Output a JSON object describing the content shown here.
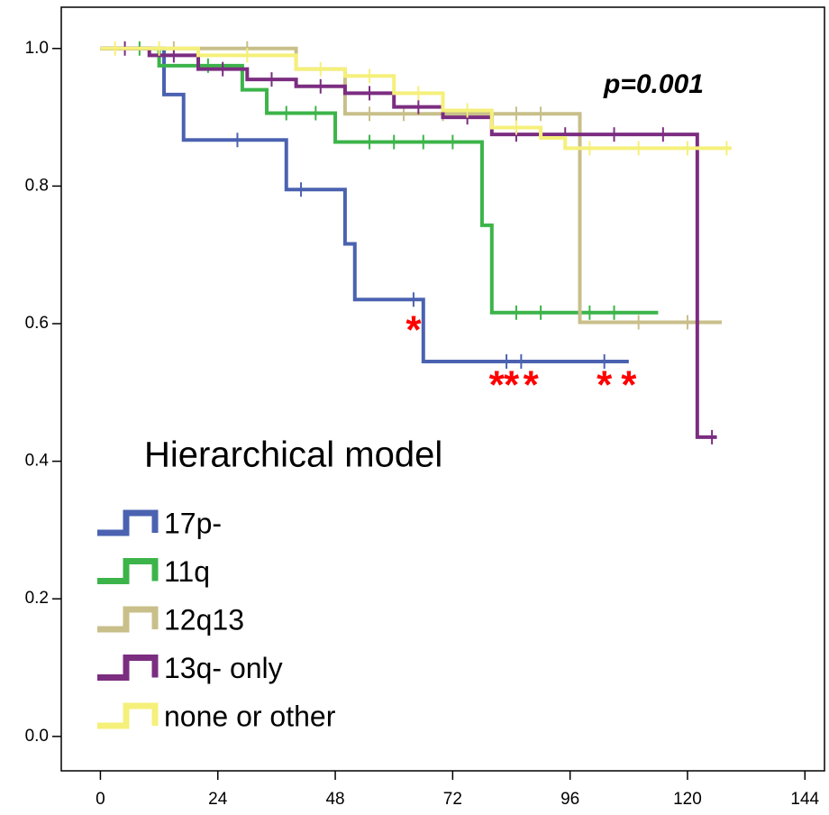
{
  "chart_data": {
    "type": "line",
    "step_curve": true,
    "legend_title": "Hierarchical model",
    "annotation": "p=0.001",
    "markers": [
      {
        "text": "*",
        "x": 64,
        "y": 0.6
      },
      {
        "text": "*",
        "x": 81,
        "y": 0.52
      },
      {
        "text": "*",
        "x": 84,
        "y": 0.52
      },
      {
        "text": "*",
        "x": 88,
        "y": 0.52
      },
      {
        "text": "*",
        "x": 103,
        "y": 0.52
      },
      {
        "text": "*",
        "x": 108,
        "y": 0.52
      }
    ],
    "xlim": [
      -8,
      148
    ],
    "ylim": [
      -0.05,
      1.06
    ],
    "xticks": [
      0,
      24,
      48,
      72,
      96,
      120,
      144
    ],
    "yticks": [
      {
        "value": 0,
        "label": "0.0"
      },
      0.2,
      0.4,
      0.6,
      0.8,
      {
        "value": 1,
        "label": "1.0"
      }
    ],
    "series": [
      {
        "name": "17p-",
        "color": "#4a62b0",
        "x": [
          0,
          13,
          13,
          17,
          17,
          38,
          38,
          50,
          50,
          52,
          52,
          66,
          66,
          108
        ],
        "values": [
          1.0,
          1.0,
          0.933,
          0.933,
          0.867,
          0.867,
          0.795,
          0.795,
          0.716,
          0.716,
          0.635,
          0.635,
          0.545,
          0.545
        ],
        "censored": {
          "x": [
            28,
            41,
            64,
            83,
            86,
            103
          ],
          "values": [
            0.867,
            0.795,
            0.635,
            0.545,
            0.545,
            0.545
          ]
        }
      },
      {
        "name": "11q",
        "color": "#3cb44a",
        "x": [
          0,
          12,
          12,
          29,
          29,
          34,
          34,
          48,
          48,
          78,
          78,
          80,
          80,
          114
        ],
        "values": [
          1.0,
          1.0,
          0.975,
          0.975,
          0.94,
          0.94,
          0.906,
          0.906,
          0.864,
          0.864,
          0.743,
          0.743,
          0.616,
          0.616
        ],
        "censored": {
          "x": [
            8,
            22,
            38,
            44,
            55,
            60,
            66,
            72,
            85,
            90,
            100,
            105
          ],
          "values": [
            1.0,
            0.975,
            0.906,
            0.906,
            0.864,
            0.864,
            0.864,
            0.864,
            0.616,
            0.616,
            0.616,
            0.616
          ]
        }
      },
      {
        "name": "12q13",
        "color": "#c8bf8a",
        "x": [
          0,
          40,
          40,
          50,
          50,
          98,
          98,
          127
        ],
        "values": [
          1.0,
          1.0,
          0.97,
          0.97,
          0.905,
          0.905,
          0.602,
          0.602
        ],
        "censored": {
          "x": [
            15,
            30,
            55,
            62,
            70,
            85,
            90,
            110,
            120
          ],
          "values": [
            1.0,
            1.0,
            0.905,
            0.905,
            0.905,
            0.905,
            0.905,
            0.602,
            0.602
          ]
        }
      },
      {
        "name": "13q- only",
        "color": "#7b2d80",
        "x": [
          0,
          10,
          10,
          20,
          20,
          30,
          30,
          40,
          40,
          50,
          50,
          60,
          60,
          70,
          70,
          80,
          80,
          122,
          122,
          126
        ],
        "values": [
          1.0,
          1.0,
          0.99,
          0.99,
          0.97,
          0.97,
          0.955,
          0.955,
          0.945,
          0.945,
          0.935,
          0.935,
          0.915,
          0.915,
          0.9,
          0.9,
          0.875,
          0.875,
          0.435,
          0.435
        ],
        "censored": {
          "x": [
            5,
            15,
            25,
            35,
            45,
            55,
            65,
            75,
            85,
            95,
            105,
            115,
            125
          ],
          "values": [
            1.0,
            0.99,
            0.97,
            0.955,
            0.945,
            0.935,
            0.915,
            0.9,
            0.875,
            0.875,
            0.875,
            0.875,
            0.435
          ]
        }
      },
      {
        "name": "none or other",
        "color": "#f5f07a",
        "x": [
          0,
          20,
          20,
          40,
          40,
          50,
          50,
          60,
          60,
          70,
          70,
          80,
          80,
          90,
          90,
          95,
          95,
          129
        ],
        "values": [
          1.0,
          1.0,
          0.99,
          0.99,
          0.97,
          0.97,
          0.96,
          0.96,
          0.935,
          0.935,
          0.91,
          0.91,
          0.885,
          0.885,
          0.87,
          0.87,
          0.855,
          0.855
        ],
        "censored": {
          "x": [
            3,
            12,
            30,
            45,
            55,
            65,
            75,
            85,
            100,
            110,
            120,
            128
          ],
          "values": [
            1.0,
            1.0,
            0.99,
            0.97,
            0.96,
            0.935,
            0.91,
            0.885,
            0.855,
            0.855,
            0.855,
            0.855
          ]
        }
      }
    ]
  }
}
